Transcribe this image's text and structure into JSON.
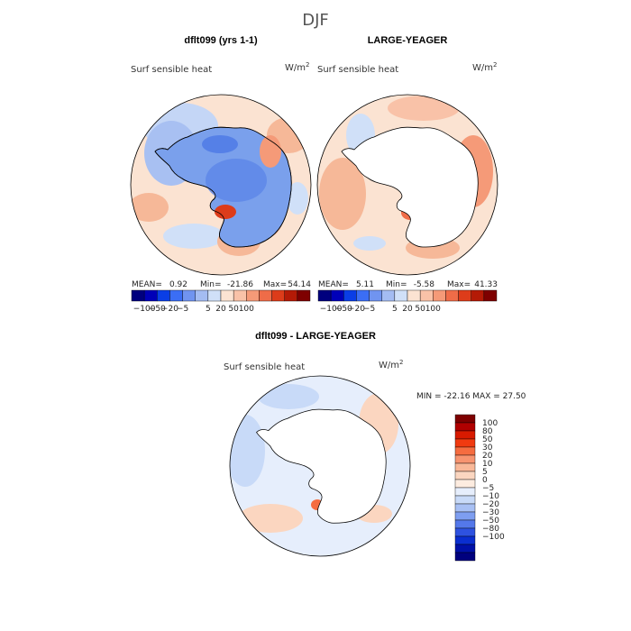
{
  "title": "DJF",
  "chart_data": [
    {
      "type": "heatmap",
      "title": "dflt099 (yrs 1-1)",
      "variable": "Surf sensible heat",
      "units_base": "W/m",
      "units_exp": "2",
      "stats": {
        "mean": "0.92",
        "min": "-21.86",
        "max": "54.14"
      },
      "labels": {
        "mean": "MEAN=",
        "min": "Min=",
        "max": "Max="
      },
      "colorbar": {
        "orientation": "horizontal",
        "colors": [
          "#00007e",
          "#0000b8",
          "#0a3ee6",
          "#3b6ef5",
          "#7094f0",
          "#a4bcf2",
          "#d0e0f8",
          "#fbe3d2",
          "#f9c2a8",
          "#f59a78",
          "#ef6c48",
          "#dd3c1a",
          "#b41a06",
          "#7e0000"
        ],
        "tick_labels": [
          "-100",
          "-50",
          "-20",
          "-5",
          "5",
          "20",
          "50",
          "100"
        ]
      },
      "antarctica_masked": false
    },
    {
      "type": "heatmap",
      "title": "LARGE-YEAGER",
      "variable": "Surf sensible heat",
      "units_base": "W/m",
      "units_exp": "2",
      "stats": {
        "mean": "5.11",
        "min": "-5.58",
        "max": "41.33"
      },
      "labels": {
        "mean": "MEAN=",
        "min": "Min=",
        "max": "Max="
      },
      "colorbar": {
        "orientation": "horizontal",
        "colors": [
          "#00007e",
          "#0000b8",
          "#0a3ee6",
          "#3b6ef5",
          "#7094f0",
          "#a4bcf2",
          "#d0e0f8",
          "#fbe3d2",
          "#f9c2a8",
          "#f59a78",
          "#ef6c48",
          "#dd3c1a",
          "#b41a06",
          "#7e0000"
        ],
        "tick_labels": [
          "-100",
          "-50",
          "-20",
          "-5",
          "5",
          "20",
          "50",
          "100"
        ]
      },
      "antarctica_masked": true
    },
    {
      "type": "heatmap",
      "title": "dflt099 - LARGE-YEAGER",
      "variable": "Surf sensible heat",
      "units_base": "W/m",
      "units_exp": "2",
      "stats_text": "MIN = -22.16 MAX =  27.50",
      "colorbar": {
        "orientation": "vertical",
        "colors": [
          "#7e0000",
          "#b00000",
          "#d81a00",
          "#f03a10",
          "#f56c40",
          "#f79470",
          "#f9b898",
          "#fbd6c0",
          "#fdece0",
          "#e6eefc",
          "#c8daf8",
          "#a8c0f4",
          "#7e9ef0",
          "#5478ea",
          "#2e52e0",
          "#0a2ed0",
          "#0010a8",
          "#00007e"
        ],
        "tick_labels": [
          "100",
          "80",
          "50",
          "30",
          "20",
          "10",
          "5",
          "0",
          "-5",
          "-10",
          "-20",
          "-30",
          "-50",
          "-80",
          "-100"
        ]
      },
      "antarctica_masked": true
    }
  ]
}
